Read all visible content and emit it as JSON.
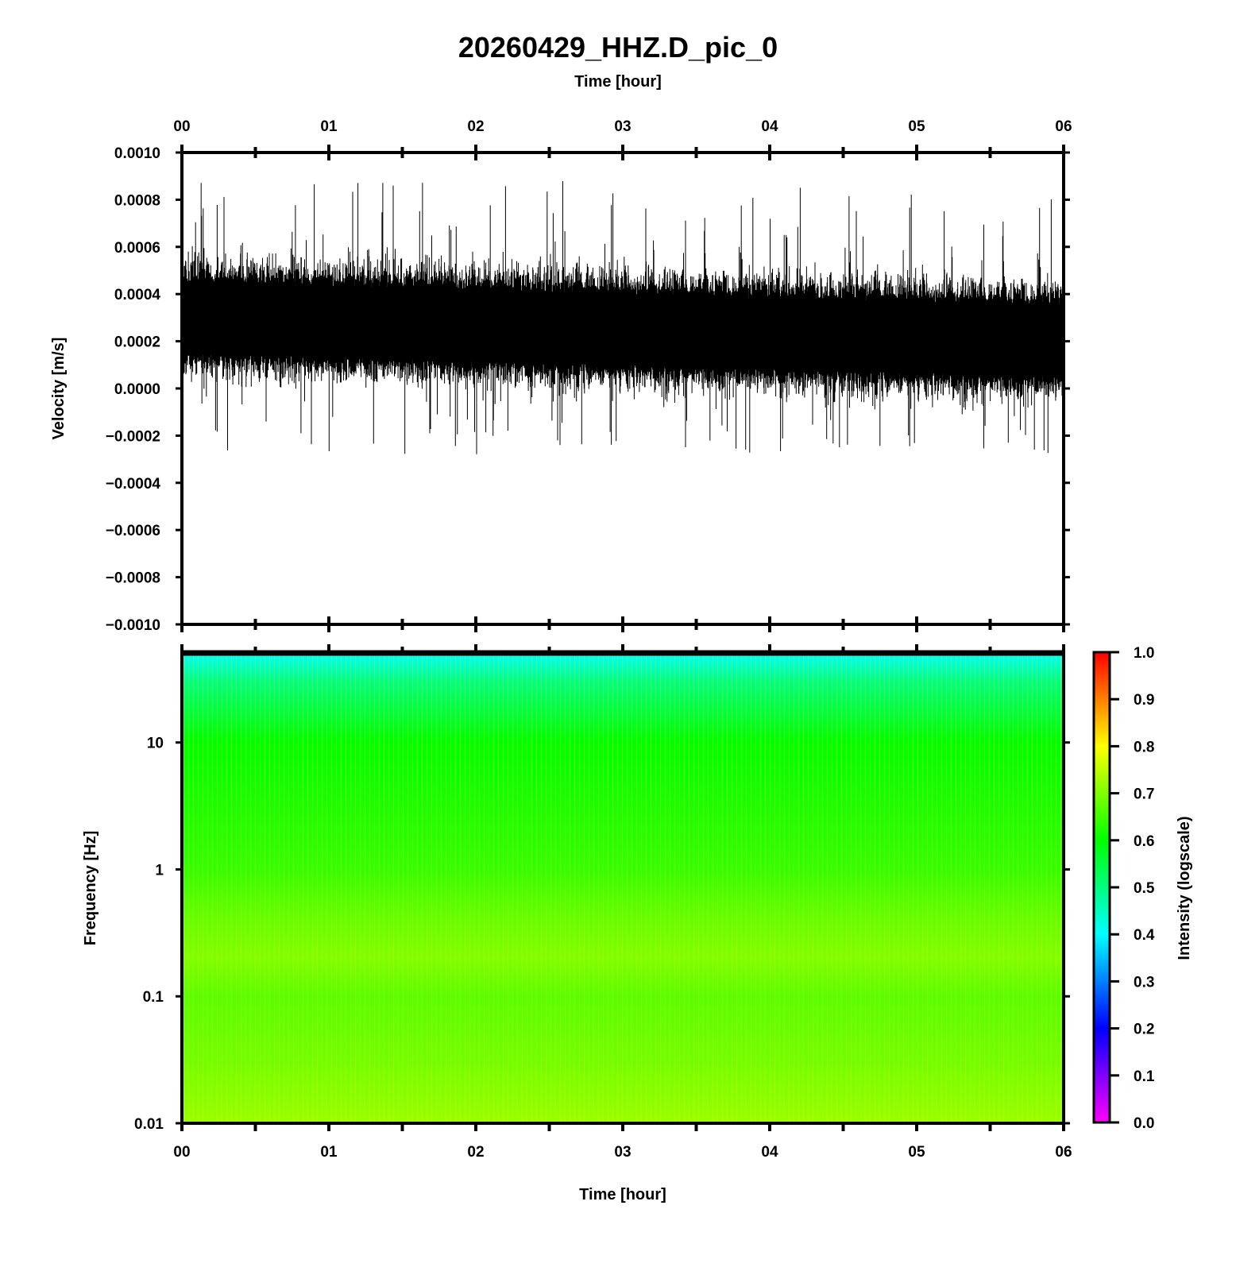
{
  "chart_data": {
    "title": "20260429_HHZ.D_pic_0",
    "charts": [
      {
        "type": "line",
        "name": "seismogram",
        "ylabel": "Velocity [m/s]",
        "xlabel_top": "Time [hour]",
        "x_tick_labels": [
          "00",
          "01",
          "02",
          "03",
          "04",
          "05",
          "06"
        ],
        "x_range_hours": [
          0,
          6
        ],
        "ylim": [
          -0.001,
          0.001
        ],
        "y_tick_labels": [
          "0.0010",
          "0.0008",
          "0.0006",
          "0.0004",
          "0.0002",
          "0.0000",
          "−0.0002",
          "−0.0004",
          "−0.0006",
          "−0.0008",
          "−0.0010"
        ],
        "y_tick_values": [
          0.001,
          0.0008,
          0.0006,
          0.0004,
          0.0002,
          0.0,
          -0.0002,
          -0.0004,
          -0.0006,
          -0.0008,
          -0.001
        ],
        "trace": {
          "color": "#000000",
          "mean_start": 0.0003,
          "mean_end": 0.0002,
          "dense_half_width": 0.00015,
          "spike_max": 0.00088,
          "spike_min": -0.00028
        },
        "grid": false
      },
      {
        "type": "heatmap",
        "name": "spectrogram",
        "ylabel": "Frequency [Hz]",
        "xlabel": "Time [hour]",
        "x_tick_labels": [
          "00",
          "01",
          "02",
          "03",
          "04",
          "05",
          "06"
        ],
        "x_range_hours": [
          0,
          6
        ],
        "y_scale": "log",
        "ylim": [
          0.01,
          50
        ],
        "y_tick_labels": [
          "10",
          "1",
          "0.1",
          "0.01"
        ],
        "y_tick_values": [
          10,
          1,
          0.1,
          0.01
        ],
        "colorbar": {
          "label": "Intensity (logscale)",
          "range": [
            0.0,
            1.0
          ],
          "tick_labels": [
            "1.0",
            "0.9",
            "0.8",
            "0.7",
            "0.6",
            "0.5",
            "0.4",
            "0.3",
            "0.2",
            "0.1",
            "0.0"
          ],
          "tick_values": [
            1.0,
            0.9,
            0.8,
            0.7,
            0.6,
            0.5,
            0.4,
            0.3,
            0.2,
            0.1,
            0.0
          ],
          "colors": [
            "#ff00ff",
            "#0000ff",
            "#00ffff",
            "#00ff00",
            "#ffff00",
            "#ff0000"
          ]
        },
        "intensity_profile": [
          {
            "freq_hz": 50,
            "intensity": 0.4
          },
          {
            "freq_hz": 30,
            "intensity": 0.5
          },
          {
            "freq_hz": 10,
            "intensity": 0.6
          },
          {
            "freq_hz": 1,
            "intensity": 0.64
          },
          {
            "freq_hz": 0.4,
            "intensity": 0.68
          },
          {
            "freq_hz": 0.2,
            "intensity": 0.7
          },
          {
            "freq_hz": 0.1,
            "intensity": 0.67
          },
          {
            "freq_hz": 0.03,
            "intensity": 0.69
          },
          {
            "freq_hz": 0.01,
            "intensity": 0.72
          }
        ]
      }
    ]
  }
}
